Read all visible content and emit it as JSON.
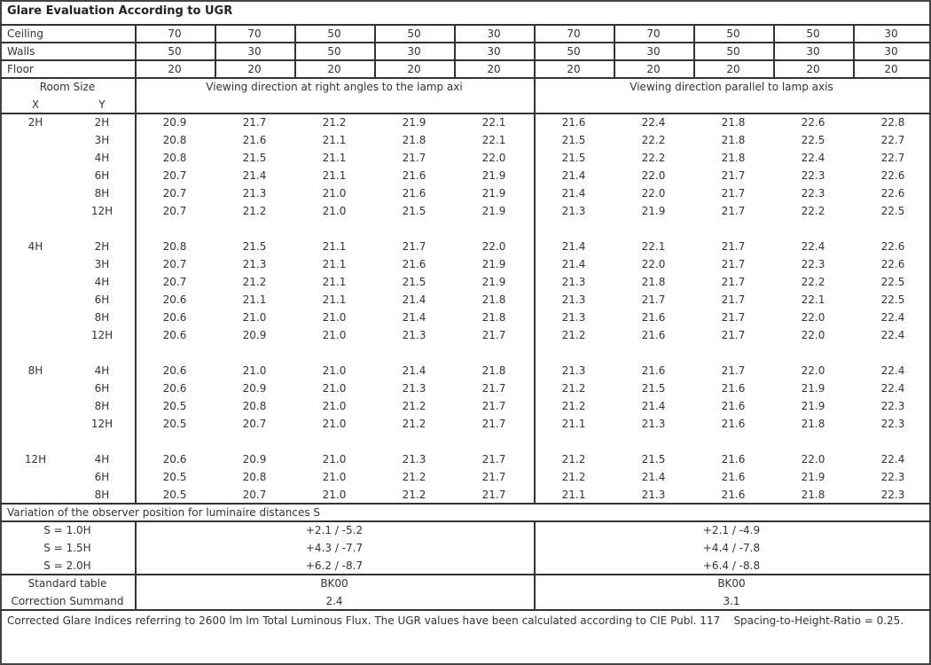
{
  "title": "Glare Evaluation According to UGR",
  "reflectances": [
    {
      "label": "Ceiling",
      "values": [
        "70",
        "70",
        "50",
        "50",
        "30",
        "70",
        "70",
        "50",
        "50",
        "30"
      ]
    },
    {
      "label": "Walls",
      "values": [
        "50",
        "30",
        "50",
        "30",
        "30",
        "50",
        "30",
        "50",
        "30",
        "30"
      ]
    },
    {
      "label": "Floor",
      "values": [
        "20",
        "20",
        "20",
        "20",
        "20",
        "20",
        "20",
        "20",
        "20",
        "20"
      ]
    }
  ],
  "header": {
    "room_size": "Room Size",
    "x": "X",
    "y": "Y",
    "perpendicular": "Viewing direction at right angles to the lamp axi",
    "parallel": "Viewing direction parallel to lamp axis"
  },
  "groups": [
    {
      "x": "2H",
      "rows": [
        {
          "y": "2H",
          "perp": [
            "20.9",
            "21.7",
            "21.2",
            "21.9",
            "22.1"
          ],
          "para": [
            "21.6",
            "22.4",
            "21.8",
            "22.6",
            "22.8"
          ]
        },
        {
          "y": "3H",
          "perp": [
            "20.8",
            "21.6",
            "21.1",
            "21.8",
            "22.1"
          ],
          "para": [
            "21.5",
            "22.2",
            "21.8",
            "22.5",
            "22.7"
          ]
        },
        {
          "y": "4H",
          "perp": [
            "20.8",
            "21.5",
            "21.1",
            "21.7",
            "22.0"
          ],
          "para": [
            "21.5",
            "22.2",
            "21.8",
            "22.4",
            "22.7"
          ]
        },
        {
          "y": "6H",
          "perp": [
            "20.7",
            "21.4",
            "21.1",
            "21.6",
            "21.9"
          ],
          "para": [
            "21.4",
            "22.0",
            "21.7",
            "22.3",
            "22.6"
          ]
        },
        {
          "y": "8H",
          "perp": [
            "20.7",
            "21.3",
            "21.0",
            "21.6",
            "21.9"
          ],
          "para": [
            "21.4",
            "22.0",
            "21.7",
            "22.3",
            "22.6"
          ]
        },
        {
          "y": "12H",
          "perp": [
            "20.7",
            "21.2",
            "21.0",
            "21.5",
            "21.9"
          ],
          "para": [
            "21.3",
            "21.9",
            "21.7",
            "22.2",
            "22.5"
          ]
        }
      ]
    },
    {
      "x": "4H",
      "rows": [
        {
          "y": "2H",
          "perp": [
            "20.8",
            "21.5",
            "21.1",
            "21.7",
            "22.0"
          ],
          "para": [
            "21.4",
            "22.1",
            "21.7",
            "22.4",
            "22.6"
          ]
        },
        {
          "y": "3H",
          "perp": [
            "20.7",
            "21.3",
            "21.1",
            "21.6",
            "21.9"
          ],
          "para": [
            "21.4",
            "22.0",
            "21.7",
            "22.3",
            "22.6"
          ]
        },
        {
          "y": "4H",
          "perp": [
            "20.7",
            "21.2",
            "21.1",
            "21.5",
            "21.9"
          ],
          "para": [
            "21.3",
            "21.8",
            "21.7",
            "22.2",
            "22.5"
          ]
        },
        {
          "y": "6H",
          "perp": [
            "20.6",
            "21.1",
            "21.1",
            "21.4",
            "21.8"
          ],
          "para": [
            "21.3",
            "21.7",
            "21.7",
            "22.1",
            "22.5"
          ]
        },
        {
          "y": "8H",
          "perp": [
            "20.6",
            "21.0",
            "21.0",
            "21.4",
            "21.8"
          ],
          "para": [
            "21.3",
            "21.6",
            "21.7",
            "22.0",
            "22.4"
          ]
        },
        {
          "y": "12H",
          "perp": [
            "20.6",
            "20.9",
            "21.0",
            "21.3",
            "21.7"
          ],
          "para": [
            "21.2",
            "21.6",
            "21.7",
            "22.0",
            "22.4"
          ]
        }
      ]
    },
    {
      "x": "8H",
      "rows": [
        {
          "y": "4H",
          "perp": [
            "20.6",
            "21.0",
            "21.0",
            "21.4",
            "21.8"
          ],
          "para": [
            "21.3",
            "21.6",
            "21.7",
            "22.0",
            "22.4"
          ]
        },
        {
          "y": "6H",
          "perp": [
            "20.6",
            "20.9",
            "21.0",
            "21.3",
            "21.7"
          ],
          "para": [
            "21.2",
            "21.5",
            "21.6",
            "21.9",
            "22.4"
          ]
        },
        {
          "y": "8H",
          "perp": [
            "20.5",
            "20.8",
            "21.0",
            "21.2",
            "21.7"
          ],
          "para": [
            "21.2",
            "21.4",
            "21.6",
            "21.9",
            "22.3"
          ]
        },
        {
          "y": "12H",
          "perp": [
            "20.5",
            "20.7",
            "21.0",
            "21.2",
            "21.7"
          ],
          "para": [
            "21.1",
            "21.3",
            "21.6",
            "21.8",
            "22.3"
          ]
        }
      ]
    },
    {
      "x": "12H",
      "rows": [
        {
          "y": "4H",
          "perp": [
            "20.6",
            "20.9",
            "21.0",
            "21.3",
            "21.7"
          ],
          "para": [
            "21.2",
            "21.5",
            "21.6",
            "22.0",
            "22.4"
          ]
        },
        {
          "y": "6H",
          "perp": [
            "20.5",
            "20.8",
            "21.0",
            "21.2",
            "21.7"
          ],
          "para": [
            "21.2",
            "21.4",
            "21.6",
            "21.9",
            "22.3"
          ]
        },
        {
          "y": "8H",
          "perp": [
            "20.5",
            "20.7",
            "21.0",
            "21.2",
            "21.7"
          ],
          "para": [
            "21.1",
            "21.3",
            "21.6",
            "21.8",
            "22.3"
          ]
        }
      ]
    }
  ],
  "variation": {
    "title": "Variation of the observer position for luminaire distances S",
    "rows": [
      {
        "label": "S = 1.0H",
        "perp": "+2.1 / -5.2",
        "para": "+2.1 / -4.9"
      },
      {
        "label": "S = 1.5H",
        "perp": "+4.3 / -7.7",
        "para": "+4.4 / -7.8"
      },
      {
        "label": "S = 2.0H",
        "perp": "+6.2 / -8.7",
        "para": "+6.4 / -8.8"
      }
    ]
  },
  "standard_table": {
    "label": "Standard table",
    "perp": "BK00",
    "para": "BK00"
  },
  "correction": {
    "label": "Correction Summand",
    "perp": "2.4",
    "para": "3.1"
  },
  "footnote": "Corrected Glare Indices referring to 2600 lm lm Total Luminous Flux. The UGR values have been calculated according to CIE Publ. 117    Spacing-to-Height-Ratio = 0.25."
}
